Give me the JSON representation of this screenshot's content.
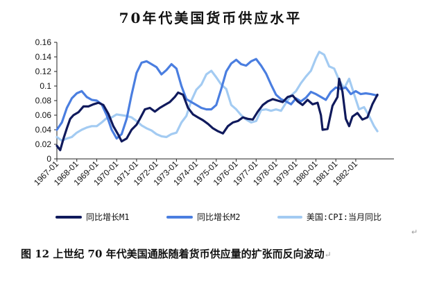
{
  "chart_data": {
    "type": "line",
    "title": "70年代美国货币供应水平",
    "caption": "图 12  上世纪 70 年代美国通胀随着货币供应量的扩张而反向波动",
    "caption_mark": "↵",
    "side_mark": "↵",
    "xlabel": "",
    "ylabel": "",
    "ylim": [
      0,
      0.16
    ],
    "yticks": [
      "0",
      "0.02",
      "0.04",
      "0.06",
      "0.08",
      "0.1",
      "0.12",
      "0.14",
      "0.16"
    ],
    "x_start": "1967-01",
    "x_end": "1983-12",
    "xticks": [
      "1967-01",
      "1968-01",
      "1969-01",
      "1970-01",
      "1971-01",
      "1972-01",
      "1973-01",
      "1974-01",
      "1975-01",
      "1976-01",
      "1977-01",
      "1978-01",
      "1979-01",
      "1980-01",
      "1981-01",
      "1982-01"
    ],
    "grid": false,
    "legend_position": "bottom",
    "series": [
      {
        "name": "同比增长M1",
        "color": "#101a5c",
        "points": [
          [
            "1967-01",
            0.018
          ],
          [
            "1967-03",
            0.012
          ],
          [
            "1967-05",
            0.028
          ],
          [
            "1967-07",
            0.042
          ],
          [
            "1967-09",
            0.055
          ],
          [
            "1967-11",
            0.06
          ],
          [
            "1968-02",
            0.064
          ],
          [
            "1968-05",
            0.072
          ],
          [
            "1968-08",
            0.072
          ],
          [
            "1968-11",
            0.075
          ],
          [
            "1969-02",
            0.077
          ],
          [
            "1969-05",
            0.074
          ],
          [
            "1969-08",
            0.062
          ],
          [
            "1969-11",
            0.045
          ],
          [
            "1970-02",
            0.033
          ],
          [
            "1970-04",
            0.024
          ],
          [
            "1970-07",
            0.028
          ],
          [
            "1970-10",
            0.04
          ],
          [
            "1971-01",
            0.047
          ],
          [
            "1971-03",
            0.055
          ],
          [
            "1971-06",
            0.068
          ],
          [
            "1971-09",
            0.07
          ],
          [
            "1971-12",
            0.065
          ],
          [
            "1972-03",
            0.07
          ],
          [
            "1972-06",
            0.074
          ],
          [
            "1972-09",
            0.078
          ],
          [
            "1972-12",
            0.085
          ],
          [
            "1973-02",
            0.091
          ],
          [
            "1973-05",
            0.088
          ],
          [
            "1973-08",
            0.07
          ],
          [
            "1973-11",
            0.061
          ],
          [
            "1974-02",
            0.057
          ],
          [
            "1974-05",
            0.053
          ],
          [
            "1974-08",
            0.048
          ],
          [
            "1974-11",
            0.042
          ],
          [
            "1975-02",
            0.038
          ],
          [
            "1975-05",
            0.035
          ],
          [
            "1975-08",
            0.045
          ],
          [
            "1975-11",
            0.05
          ],
          [
            "1976-02",
            0.052
          ],
          [
            "1976-05",
            0.057
          ],
          [
            "1976-08",
            0.055
          ],
          [
            "1976-11",
            0.054
          ],
          [
            "1977-02",
            0.065
          ],
          [
            "1977-05",
            0.074
          ],
          [
            "1977-08",
            0.079
          ],
          [
            "1977-11",
            0.082
          ],
          [
            "1978-02",
            0.08
          ],
          [
            "1978-05",
            0.078
          ],
          [
            "1978-08",
            0.085
          ],
          [
            "1978-11",
            0.087
          ],
          [
            "1979-02",
            0.079
          ],
          [
            "1979-05",
            0.074
          ],
          [
            "1979-08",
            0.081
          ],
          [
            "1979-11",
            0.075
          ],
          [
            "1980-02",
            0.077
          ],
          [
            "1980-04",
            0.06
          ],
          [
            "1980-05",
            0.04
          ],
          [
            "1980-08",
            0.041
          ],
          [
            "1980-11",
            0.073
          ],
          [
            "1981-02",
            0.085
          ],
          [
            "1981-03",
            0.11
          ],
          [
            "1981-05",
            0.092
          ],
          [
            "1981-07",
            0.055
          ],
          [
            "1981-09",
            0.045
          ],
          [
            "1981-11",
            0.058
          ],
          [
            "1982-02",
            0.063
          ],
          [
            "1982-05",
            0.054
          ],
          [
            "1982-08",
            0.057
          ],
          [
            "1982-11",
            0.075
          ],
          [
            "1983-02",
            0.088
          ]
        ]
      },
      {
        "name": "同比增长M2",
        "color": "#4a7ee0",
        "points": [
          [
            "1967-01",
            0.04
          ],
          [
            "1967-04",
            0.05
          ],
          [
            "1967-07",
            0.07
          ],
          [
            "1967-10",
            0.083
          ],
          [
            "1968-01",
            0.09
          ],
          [
            "1968-04",
            0.093
          ],
          [
            "1968-07",
            0.085
          ],
          [
            "1968-10",
            0.081
          ],
          [
            "1969-01",
            0.08
          ],
          [
            "1969-04",
            0.075
          ],
          [
            "1969-07",
            0.06
          ],
          [
            "1969-10",
            0.04
          ],
          [
            "1970-01",
            0.028
          ],
          [
            "1970-04",
            0.034
          ],
          [
            "1970-07",
            0.055
          ],
          [
            "1970-10",
            0.088
          ],
          [
            "1971-01",
            0.118
          ],
          [
            "1971-04",
            0.132
          ],
          [
            "1971-07",
            0.134
          ],
          [
            "1971-10",
            0.13
          ],
          [
            "1972-01",
            0.126
          ],
          [
            "1972-04",
            0.116
          ],
          [
            "1972-07",
            0.122
          ],
          [
            "1972-10",
            0.13
          ],
          [
            "1973-01",
            0.124
          ],
          [
            "1973-04",
            0.1
          ],
          [
            "1973-07",
            0.082
          ],
          [
            "1973-10",
            0.078
          ],
          [
            "1974-01",
            0.074
          ],
          [
            "1974-04",
            0.07
          ],
          [
            "1974-07",
            0.068
          ],
          [
            "1974-10",
            0.068
          ],
          [
            "1975-01",
            0.074
          ],
          [
            "1975-04",
            0.096
          ],
          [
            "1975-07",
            0.12
          ],
          [
            "1975-10",
            0.131
          ],
          [
            "1976-01",
            0.136
          ],
          [
            "1976-04",
            0.13
          ],
          [
            "1976-07",
            0.128
          ],
          [
            "1976-10",
            0.134
          ],
          [
            "1977-01",
            0.137
          ],
          [
            "1977-04",
            0.128
          ],
          [
            "1977-07",
            0.117
          ],
          [
            "1977-10",
            0.102
          ],
          [
            "1978-01",
            0.088
          ],
          [
            "1978-04",
            0.082
          ],
          [
            "1978-07",
            0.079
          ],
          [
            "1978-10",
            0.075
          ],
          [
            "1979-01",
            0.083
          ],
          [
            "1979-04",
            0.079
          ],
          [
            "1979-07",
            0.084
          ],
          [
            "1979-10",
            0.092
          ],
          [
            "1980-01",
            0.089
          ],
          [
            "1980-04",
            0.085
          ],
          [
            "1980-07",
            0.081
          ],
          [
            "1980-10",
            0.092
          ],
          [
            "1981-01",
            0.098
          ],
          [
            "1981-04",
            0.096
          ],
          [
            "1981-07",
            0.098
          ],
          [
            "1981-10",
            0.089
          ],
          [
            "1982-01",
            0.093
          ],
          [
            "1982-04",
            0.089
          ],
          [
            "1982-07",
            0.09
          ],
          [
            "1982-10",
            0.089
          ],
          [
            "1983-02",
            0.087
          ]
        ]
      },
      {
        "name": "美国:CPI:当月同比",
        "color": "#a3cbf2",
        "points": [
          [
            "1967-01",
            0.03
          ],
          [
            "1967-04",
            0.025
          ],
          [
            "1967-07",
            0.028
          ],
          [
            "1967-10",
            0.03
          ],
          [
            "1968-01",
            0.036
          ],
          [
            "1968-04",
            0.04
          ],
          [
            "1968-07",
            0.043
          ],
          [
            "1968-10",
            0.045
          ],
          [
            "1969-01",
            0.045
          ],
          [
            "1969-04",
            0.05
          ],
          [
            "1969-07",
            0.056
          ],
          [
            "1969-10",
            0.057
          ],
          [
            "1970-01",
            0.061
          ],
          [
            "1970-04",
            0.06
          ],
          [
            "1970-07",
            0.059
          ],
          [
            "1970-10",
            0.057
          ],
          [
            "1971-01",
            0.052
          ],
          [
            "1971-04",
            0.046
          ],
          [
            "1971-07",
            0.042
          ],
          [
            "1971-10",
            0.039
          ],
          [
            "1972-01",
            0.034
          ],
          [
            "1972-04",
            0.031
          ],
          [
            "1972-07",
            0.03
          ],
          [
            "1972-10",
            0.034
          ],
          [
            "1973-01",
            0.036
          ],
          [
            "1973-04",
            0.05
          ],
          [
            "1973-07",
            0.059
          ],
          [
            "1973-10",
            0.08
          ],
          [
            "1974-01",
            0.095
          ],
          [
            "1974-04",
            0.102
          ],
          [
            "1974-07",
            0.116
          ],
          [
            "1974-10",
            0.121
          ],
          [
            "1975-01",
            0.112
          ],
          [
            "1975-04",
            0.102
          ],
          [
            "1975-07",
            0.096
          ],
          [
            "1975-10",
            0.074
          ],
          [
            "1976-01",
            0.068
          ],
          [
            "1976-04",
            0.06
          ],
          [
            "1976-07",
            0.054
          ],
          [
            "1976-10",
            0.05
          ],
          [
            "1977-01",
            0.052
          ],
          [
            "1977-04",
            0.067
          ],
          [
            "1977-07",
            0.068
          ],
          [
            "1977-10",
            0.066
          ],
          [
            "1978-01",
            0.068
          ],
          [
            "1978-04",
            0.066
          ],
          [
            "1978-07",
            0.077
          ],
          [
            "1978-10",
            0.087
          ],
          [
            "1979-01",
            0.093
          ],
          [
            "1979-04",
            0.104
          ],
          [
            "1979-07",
            0.113
          ],
          [
            "1979-10",
            0.121
          ],
          [
            "1980-01",
            0.138
          ],
          [
            "1980-03",
            0.147
          ],
          [
            "1980-06",
            0.143
          ],
          [
            "1980-09",
            0.127
          ],
          [
            "1980-12",
            0.124
          ],
          [
            "1981-03",
            0.108
          ],
          [
            "1981-06",
            0.097
          ],
          [
            "1981-09",
            0.11
          ],
          [
            "1981-12",
            0.089
          ],
          [
            "1982-03",
            0.068
          ],
          [
            "1982-06",
            0.071
          ],
          [
            "1982-09",
            0.059
          ],
          [
            "1982-12",
            0.045
          ],
          [
            "1983-02",
            0.038
          ]
        ]
      }
    ]
  }
}
